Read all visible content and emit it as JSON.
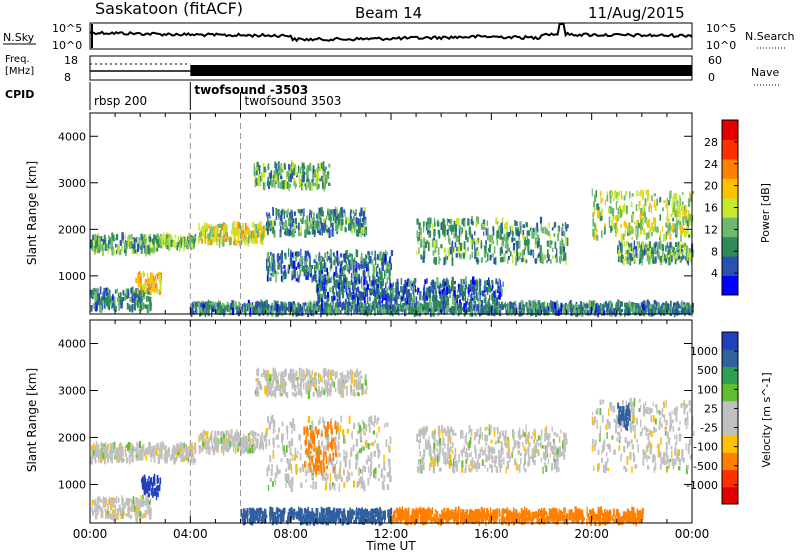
{
  "header": {
    "station": "Saskatoon (fitACF)",
    "beam": "Beam 14",
    "date": "11/Aug/2015"
  },
  "strip_labels": {
    "nsky": "N.Sky",
    "nsearch": "N.Search",
    "freq_line1": "Freq.",
    "freq_line2": "[MHz]",
    "nave": "Nave",
    "cpid": "CPID"
  },
  "strip_ticks": {
    "noise_top_left": "10^5",
    "noise_bottom_left": "10^0",
    "noise_top_right": "10^5",
    "noise_bottom_right": "10^0",
    "freq_top": "18",
    "freq_bottom": "8",
    "nave_top": "60",
    "nave_bottom": "0"
  },
  "cpid_segments": [
    {
      "label": "rbsp 200",
      "start_hour": 0.0
    },
    {
      "label": "twofsound -3503",
      "start_hour": 4.0
    },
    {
      "label": "twofsound 3503",
      "start_hour": 6.0
    }
  ],
  "colors": {
    "power_scale": [
      "#0000ff",
      "#2a50b4",
      "#2e8b57",
      "#6fb86f",
      "#c8e830",
      "#ffc000",
      "#ff8000",
      "#ff3000",
      "#e00000"
    ],
    "velocity_scale": [
      "#2040c0",
      "#3060a0",
      "#30a050",
      "#60c030",
      "#c0c0c0",
      "#c0c0c0",
      "#ffc000",
      "#ff8000",
      "#ff3000",
      "#e00000"
    ]
  },
  "chart_data": [
    {
      "type": "heatmap",
      "name": "power",
      "ylabel": "Slant Range [km]",
      "x_ticks": [
        "00:00",
        "04:00",
        "08:00",
        "12:00",
        "16:00",
        "20:00",
        "00:00"
      ],
      "xlim_hours": [
        0,
        24
      ],
      "ylim_km": [
        180,
        4500
      ],
      "y_ticks": [
        1000,
        2000,
        3000,
        4000
      ],
      "colorbar": {
        "label": "Power [dB]",
        "ticks": [
          "4",
          "8",
          "12",
          "16",
          "20",
          "24",
          "28"
        ],
        "range": [
          0,
          30
        ]
      },
      "echo_bands": [
        {
          "t0": 0.0,
          "t1": 2.6,
          "r0": 1500,
          "r1": 1850,
          "p": 10
        },
        {
          "t0": 2.6,
          "t1": 4.2,
          "r0": 1600,
          "r1": 1850,
          "p": 12
        },
        {
          "t0": 0.0,
          "t1": 2.4,
          "r0": 280,
          "r1": 700,
          "p": 8
        },
        {
          "t0": 1.8,
          "t1": 2.8,
          "r0": 650,
          "r1": 1050,
          "p": 18
        },
        {
          "t0": 4.3,
          "t1": 7.0,
          "r0": 1700,
          "r1": 2100,
          "p": 16
        },
        {
          "t0": 6.5,
          "t1": 9.5,
          "r0": 2900,
          "r1": 3400,
          "p": 10
        },
        {
          "t0": 7.0,
          "t1": 11.0,
          "r0": 1900,
          "r1": 2400,
          "p": 9
        },
        {
          "t0": 7.0,
          "t1": 12.0,
          "r0": 900,
          "r1": 1500,
          "p": 7
        },
        {
          "t0": 13.0,
          "t1": 19.0,
          "r0": 1300,
          "r1": 2200,
          "p": 10
        },
        {
          "t0": 20.0,
          "t1": 24.0,
          "r0": 1800,
          "r1": 2800,
          "p": 14
        },
        {
          "t0": 21.0,
          "t1": 24.0,
          "r0": 1300,
          "r1": 1700,
          "p": 10
        },
        {
          "t0": 4.0,
          "t1": 24.0,
          "r0": 200,
          "r1": 400,
          "p": 8
        },
        {
          "t0": 9.0,
          "t1": 16.5,
          "r0": 450,
          "r1": 900,
          "p": 6
        }
      ]
    },
    {
      "type": "heatmap",
      "name": "velocity",
      "ylabel": "Slant Range [km]",
      "xlabel": "Time UT",
      "x_ticks": [
        "00:00",
        "04:00",
        "08:00",
        "12:00",
        "16:00",
        "20:00",
        "00:00"
      ],
      "xlim_hours": [
        0,
        24
      ],
      "ylim_km": [
        180,
        4500
      ],
      "y_ticks": [
        1000,
        2000,
        3000,
        4000
      ],
      "colorbar": {
        "label": "Velocity [m s^-1]",
        "ticks": [
          "1000",
          "500",
          "100",
          "25",
          "-25",
          "-100",
          "-500",
          "-1000"
        ]
      },
      "echo_bands": [
        {
          "t0": 0.0,
          "t1": 4.2,
          "r0": 1500,
          "r1": 1850,
          "v": 0
        },
        {
          "t0": 0.0,
          "t1": 2.4,
          "r0": 280,
          "r1": 700,
          "v": 0
        },
        {
          "t0": 2.0,
          "t1": 2.8,
          "r0": 750,
          "r1": 1150,
          "v": 600
        },
        {
          "t0": 4.3,
          "t1": 7.0,
          "r0": 1700,
          "r1": 2100,
          "v": 0
        },
        {
          "t0": 6.5,
          "t1": 11.0,
          "r0": 2900,
          "r1": 3400,
          "v": 0
        },
        {
          "t0": 7.0,
          "t1": 12.0,
          "r0": 900,
          "r1": 2400,
          "v": 0
        },
        {
          "t0": 13.0,
          "t1": 19.0,
          "r0": 1300,
          "r1": 2200,
          "v": 0
        },
        {
          "t0": 20.0,
          "t1": 24.0,
          "r0": 1300,
          "r1": 2800,
          "v": 0
        },
        {
          "t0": 6.0,
          "t1": 12.0,
          "r0": 200,
          "r1": 450,
          "v": 150
        },
        {
          "t0": 12.0,
          "t1": 22.0,
          "r0": 200,
          "r1": 450,
          "v": -150
        },
        {
          "t0": 8.5,
          "t1": 9.8,
          "r0": 1200,
          "r1": 2300,
          "v": -300
        },
        {
          "t0": 21.0,
          "t1": 21.5,
          "r0": 2200,
          "r1": 2700,
          "v": 400
        }
      ]
    }
  ]
}
